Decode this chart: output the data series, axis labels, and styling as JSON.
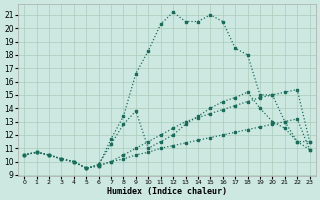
{
  "xlabel": "Humidex (Indice chaleur)",
  "bg_color": "#cce8e0",
  "grid_color": "#aaccbb",
  "line_color": "#1a6b5a",
  "xlim": [
    -0.5,
    23.5
  ],
  "ylim": [
    8.9,
    21.8
  ],
  "xticks": [
    0,
    1,
    2,
    3,
    4,
    5,
    6,
    7,
    8,
    9,
    10,
    11,
    12,
    13,
    14,
    15,
    16,
    17,
    18,
    19,
    20,
    21,
    22,
    23
  ],
  "yticks": [
    9,
    10,
    11,
    12,
    13,
    14,
    15,
    16,
    17,
    18,
    19,
    20,
    21
  ],
  "curve1_x": [
    0,
    1,
    2,
    3,
    4,
    5,
    6,
    7,
    8,
    9,
    10,
    11,
    12,
    13,
    14,
    15,
    16,
    17,
    18,
    19,
    20,
    21,
    22,
    23
  ],
  "curve1_y": [
    10.5,
    10.7,
    10.5,
    10.2,
    10.0,
    9.5,
    9.7,
    11.7,
    13.4,
    16.6,
    18.3,
    20.3,
    21.2,
    20.5,
    20.5,
    21.0,
    20.5,
    18.5,
    18.0,
    15.0,
    15.0,
    13.0,
    11.5,
    10.9
  ],
  "curve2_x": [
    0,
    1,
    2,
    3,
    4,
    5,
    6,
    7,
    8,
    9,
    10,
    11,
    12,
    13,
    14,
    15,
    16,
    17,
    18,
    19,
    20,
    21,
    22,
    23
  ],
  "curve2_y": [
    10.5,
    10.7,
    10.5,
    10.2,
    10.0,
    9.5,
    9.8,
    11.3,
    12.8,
    13.8,
    11.0,
    11.5,
    12.0,
    12.8,
    13.4,
    14.0,
    14.5,
    14.8,
    15.2,
    14.0,
    13.0,
    12.5,
    11.5,
    11.5
  ],
  "curve3_x": [
    0,
    1,
    2,
    3,
    4,
    5,
    6,
    7,
    8,
    9,
    10,
    11,
    12,
    13,
    14,
    15,
    16,
    17,
    18,
    19,
    20,
    21,
    22,
    23
  ],
  "curve3_y": [
    10.5,
    10.7,
    10.5,
    10.2,
    10.0,
    9.5,
    9.7,
    10.0,
    10.5,
    11.0,
    11.5,
    12.0,
    12.5,
    13.0,
    13.3,
    13.6,
    13.9,
    14.2,
    14.5,
    14.8,
    15.0,
    15.2,
    15.4,
    11.5
  ],
  "curve4_x": [
    0,
    1,
    2,
    3,
    4,
    5,
    6,
    7,
    8,
    9,
    10,
    11,
    12,
    13,
    14,
    15,
    16,
    17,
    18,
    19,
    20,
    21,
    22,
    23
  ],
  "curve4_y": [
    10.5,
    10.7,
    10.5,
    10.2,
    10.0,
    9.5,
    9.7,
    10.0,
    10.2,
    10.5,
    10.7,
    11.0,
    11.2,
    11.4,
    11.6,
    11.8,
    12.0,
    12.2,
    12.4,
    12.6,
    12.8,
    13.0,
    13.2,
    10.9
  ]
}
